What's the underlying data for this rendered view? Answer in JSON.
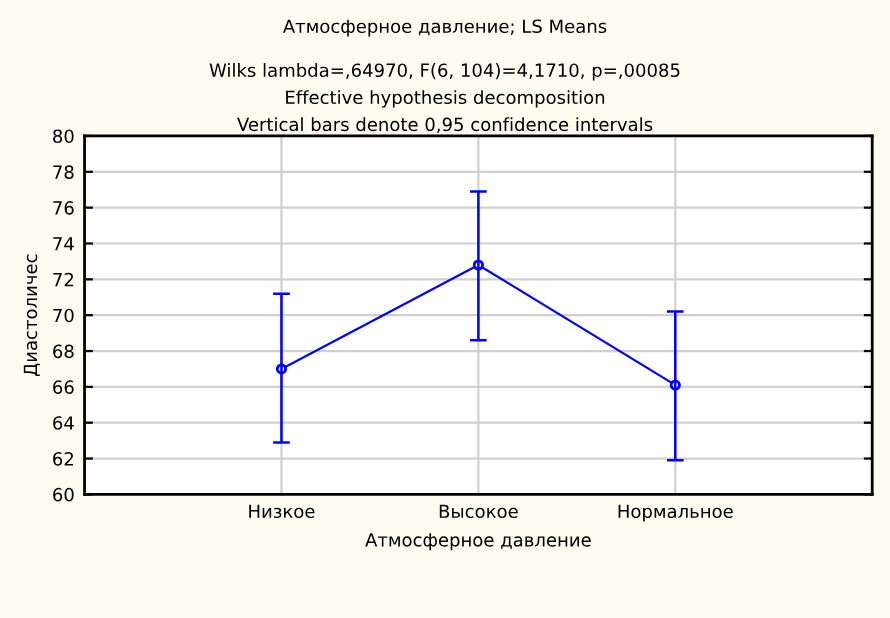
{
  "chart_data": {
    "type": "line",
    "title": "Атмосферное давление; LS Means",
    "subtitle": "Wilks lambda=,64970, F(6, 104)=4,1710, p=,00085\nEffective hypothesis decomposition\nVertical bars denote 0,95 confidence intervals",
    "xlabel": "Атмосферное давление",
    "ylabel": "Диастоличес",
    "categories": [
      "Низкое",
      "Высокое",
      "Нормальное"
    ],
    "series": [
      {
        "color": "#0000ff",
        "values": [
          67.0,
          72.8,
          66.1
        ],
        "errors": [
          [
            62.9,
            71.2
          ],
          [
            68.6,
            76.9
          ],
          [
            61.9,
            70.2
          ]
        ]
      }
    ],
    "ylim": [
      60,
      80
    ],
    "yticks": [
      60,
      62,
      64,
      66,
      68,
      70,
      72,
      74,
      76,
      78,
      80
    ],
    "grid": true,
    "marker": "circle",
    "line_style": "solid"
  }
}
